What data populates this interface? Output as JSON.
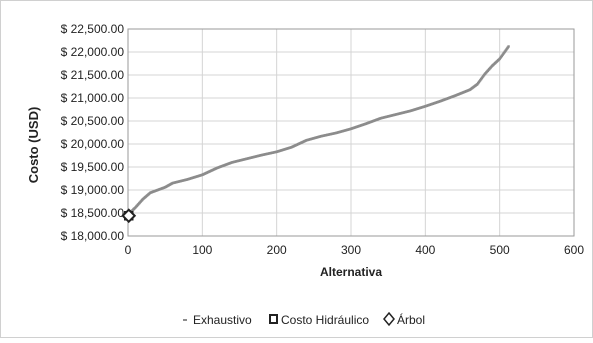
{
  "chart_data": {
    "type": "scatter",
    "xlabel": "Alternativa",
    "ylabel": "Costo (USD)",
    "xlim": [
      0,
      600
    ],
    "ylim": [
      18000,
      22500
    ],
    "x_ticks": [
      0,
      100,
      200,
      300,
      400,
      500,
      600
    ],
    "y_ticks": [
      18000,
      18500,
      19000,
      19500,
      20000,
      20500,
      21000,
      21500,
      22000,
      22500
    ],
    "x_tick_labels": [
      "0",
      "100",
      "200",
      "300",
      "400",
      "500",
      "600"
    ],
    "y_tick_labels": [
      "$ 18,000.00",
      "$ 18,500.00",
      "$ 19,000.00",
      "$ 19,500.00",
      "$ 20,000.00",
      "$ 20,500.00",
      "$ 21,000.00",
      "$ 21,500.00",
      "$ 22,000.00",
      "$ 22,500.00"
    ],
    "grid": true,
    "legend_position": "bottom",
    "series": [
      {
        "name": "Exhaustivo",
        "marker": "dash",
        "color": "#8c8c8c",
        "n_points": 512,
        "curve_x": [
          1,
          10,
          20,
          30,
          40,
          50,
          60,
          80,
          100,
          120,
          140,
          160,
          180,
          200,
          220,
          240,
          260,
          280,
          300,
          320,
          340,
          360,
          380,
          400,
          420,
          440,
          460,
          470,
          480,
          490,
          500,
          512
        ],
        "curve_y": [
          18480,
          18620,
          18800,
          18940,
          19000,
          19060,
          19150,
          19230,
          19330,
          19480,
          19600,
          19680,
          19760,
          19830,
          19930,
          20080,
          20170,
          20240,
          20330,
          20440,
          20560,
          20640,
          20720,
          20820,
          20930,
          21050,
          21180,
          21300,
          21520,
          21700,
          21850,
          22120
        ]
      },
      {
        "name": "Costo Hidráulico",
        "marker": "square",
        "color": "#222222",
        "points": [
          {
            "x": 1,
            "y": 18440
          }
        ]
      },
      {
        "name": "Árbol",
        "marker": "diamond",
        "color": "#222222",
        "points": [
          {
            "x": 1,
            "y": 18440
          }
        ]
      }
    ]
  }
}
